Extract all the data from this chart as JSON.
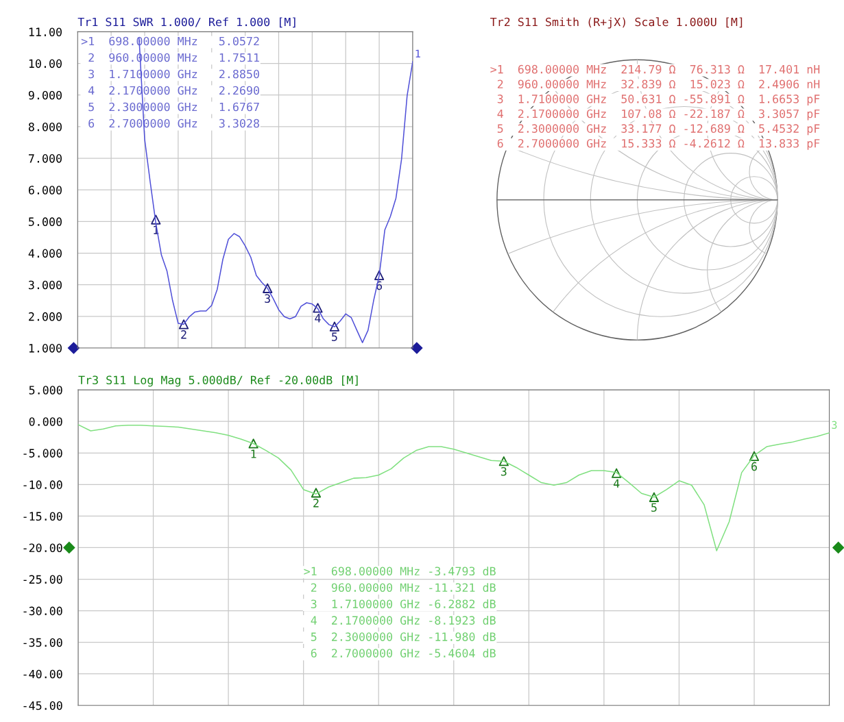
{
  "chart_data": [
    {
      "type": "line",
      "title": "Tr1 S11 SWR 1.000/ Ref 1.000 [M]",
      "categories": [
        null,
        null,
        null,
        null,
        null,
        null,
        null,
        null,
        null,
        null,
        null,
        null,
        null,
        null,
        null,
        null,
        null,
        null,
        null,
        null,
        null,
        null,
        null,
        null,
        null,
        null,
        null,
        null,
        null,
        null,
        null,
        null,
        null,
        null,
        null,
        null,
        null,
        null,
        null,
        null,
        null,
        null,
        null,
        null,
        null,
        null,
        null,
        null,
        null,
        null,
        null,
        null,
        null,
        null,
        null,
        null,
        null,
        null,
        null,
        null,
        null
      ],
      "series": [
        {
          "color": "#5050d8",
          "values": [
            null,
            null,
            null,
            null,
            null,
            null,
            null,
            null,
            null,
            null,
            null,
            10.8,
            7.6,
            6.24,
            4.95,
            3.94,
            3.43,
            2.5,
            1.78,
            1.75,
            1.99,
            2.14,
            2.17,
            2.17,
            2.35,
            2.86,
            3.8,
            4.44,
            4.62,
            4.52,
            4.23,
            3.87,
            3.29,
            3.07,
            2.89,
            2.57,
            2.21,
            1.99,
            1.92,
            1.99,
            2.32,
            2.43,
            2.39,
            2.25,
            1.92,
            1.74,
            1.67,
            1.85,
            2.08,
            1.96,
            1.56,
            1.17,
            1.56,
            2.5,
            3.29,
            4.73,
            5.16,
            5.74,
            6.97,
            8.98,
            10.06
          ]
        },
        {
          "type": "scatter",
          "name": "1",
          "color": "#1c1c78",
          "marker": "triangle",
          "values": [
            null,
            null,
            null,
            null,
            null,
            null,
            null,
            null,
            null,
            null,
            null,
            null,
            null,
            null,
            5.06,
            null,
            null,
            null,
            null,
            null,
            null,
            null,
            null,
            null,
            null,
            null,
            null,
            null,
            null,
            null,
            null,
            null,
            null,
            null,
            null,
            null,
            null,
            null,
            null,
            null,
            null,
            null,
            null,
            null,
            null,
            null,
            null,
            null,
            null,
            null,
            null,
            null,
            null,
            null,
            null,
            null,
            null,
            null,
            null,
            null,
            null
          ]
        },
        {
          "type": "scatter",
          "name": "2",
          "color": "#1c1c78",
          "marker": "triangle",
          "values": [
            null,
            null,
            null,
            null,
            null,
            null,
            null,
            null,
            null,
            null,
            null,
            null,
            null,
            null,
            null,
            null,
            null,
            null,
            null,
            1.75,
            null,
            null,
            null,
            null,
            null,
            null,
            null,
            null,
            null,
            null,
            null,
            null,
            null,
            null,
            null,
            null,
            null,
            null,
            null,
            null,
            null,
            null,
            null,
            null,
            null,
            null,
            null,
            null,
            null,
            null,
            null,
            null,
            null,
            null,
            null,
            null,
            null,
            null,
            null,
            null,
            null
          ]
        },
        {
          "type": "scatter",
          "name": "3",
          "color": "#1c1c78",
          "marker": "triangle",
          "values": [
            null,
            null,
            null,
            null,
            null,
            null,
            null,
            null,
            null,
            null,
            null,
            null,
            null,
            null,
            null,
            null,
            null,
            null,
            null,
            null,
            null,
            null,
            null,
            null,
            null,
            null,
            null,
            null,
            null,
            null,
            null,
            null,
            null,
            null,
            2.89,
            null,
            null,
            null,
            null,
            null,
            null,
            null,
            null,
            null,
            null,
            null,
            null,
            null,
            null,
            null,
            null,
            null,
            null,
            null,
            null,
            null,
            null,
            null,
            null,
            null,
            null
          ]
        },
        {
          "type": "scatter",
          "name": "4",
          "color": "#1c1c78",
          "marker": "triangle",
          "values": [
            null,
            null,
            null,
            null,
            null,
            null,
            null,
            null,
            null,
            null,
            null,
            null,
            null,
            null,
            null,
            null,
            null,
            null,
            null,
            null,
            null,
            null,
            null,
            null,
            null,
            null,
            null,
            null,
            null,
            null,
            null,
            null,
            null,
            null,
            null,
            null,
            null,
            null,
            null,
            null,
            null,
            null,
            null,
            2.27,
            null,
            null,
            null,
            null,
            null,
            null,
            null,
            null,
            null,
            null,
            null,
            null,
            null,
            null,
            null,
            null,
            null
          ]
        },
        {
          "type": "scatter",
          "name": "5",
          "color": "#1c1c78",
          "marker": "triangle",
          "values": [
            null,
            null,
            null,
            null,
            null,
            null,
            null,
            null,
            null,
            null,
            null,
            null,
            null,
            null,
            null,
            null,
            null,
            null,
            null,
            null,
            null,
            null,
            null,
            null,
            null,
            null,
            null,
            null,
            null,
            null,
            null,
            null,
            null,
            null,
            null,
            null,
            null,
            null,
            null,
            null,
            null,
            null,
            null,
            null,
            null,
            null,
            1.68,
            null,
            null,
            null,
            null,
            null,
            null,
            null,
            null,
            null,
            null,
            null,
            null,
            null,
            null
          ]
        },
        {
          "type": "scatter",
          "name": "6",
          "color": "#1c1c78",
          "marker": "triangle",
          "values": [
            null,
            null,
            null,
            null,
            null,
            null,
            null,
            null,
            null,
            null,
            null,
            null,
            null,
            null,
            null,
            null,
            null,
            null,
            null,
            null,
            null,
            null,
            null,
            null,
            null,
            null,
            null,
            null,
            null,
            null,
            null,
            null,
            null,
            null,
            null,
            null,
            null,
            null,
            null,
            null,
            null,
            null,
            null,
            null,
            null,
            null,
            null,
            null,
            null,
            null,
            null,
            null,
            null,
            null,
            3.3,
            null,
            null,
            null,
            null,
            null,
            null
          ]
        }
      ],
      "ylim": [
        1,
        11
      ],
      "yticks": [
        {
          "value": 1,
          "label": "1.000"
        },
        {
          "value": 2,
          "label": "2.000"
        },
        {
          "value": 3,
          "label": "3.000"
        },
        {
          "value": 4,
          "label": "4.000"
        },
        {
          "value": 5,
          "label": "5.000"
        },
        {
          "value": 6,
          "label": "6.000"
        },
        {
          "value": 7,
          "label": "7.000"
        },
        {
          "value": 8,
          "label": "8.000"
        },
        {
          "value": 9,
          "label": "9.000"
        },
        {
          "value": 10,
          "label": "10.00"
        },
        {
          "value": 11,
          "label": "11.00"
        }
      ],
      "tick_labels": "y",
      "grid": true,
      "legend": false,
      "annotations": [
        "1",
        ">1  698.00000 MHz   5.0572",
        " 2  960.00000 MHz   1.7511",
        " 3  1.7100000 GHz   2.8850",
        " 4  2.1700000 GHz   2.2690",
        " 5  2.3000000 GHz   1.6767",
        " 6  2.7000000 GHz   3.3028"
      ]
    },
    {
      "type": "other",
      "title": "Tr2 S11 Smith (R+jX) Scale 1.000U [M]",
      "annotations": [
        ">1  698.00000 MHz  214.79 Ω  76.313 Ω  17.401 nH",
        " 2  960.00000 MHz  32.839 Ω  15.023 Ω  2.4906 nH",
        " 3  1.7100000 GHz  50.631 Ω -55.891 Ω  1.6653 pF",
        " 4  2.1700000 GHz  107.08 Ω -22.187 Ω  3.3057 pF",
        " 5  2.3000000 GHz  33.177 Ω -12.689 Ω  5.4532 pF",
        " 6  2.7000000 GHz  15.333 Ω -4.2612 Ω  13.833 pF"
      ]
    },
    {
      "type": "line",
      "title": "Tr3 S11 Log Mag 5.000dB/ Ref -20.00dB [M]",
      "categories": [
        null,
        null,
        null,
        null,
        null,
        null,
        null,
        null,
        null,
        null,
        null,
        null,
        null,
        null,
        null,
        null,
        null,
        null,
        null,
        null,
        null,
        null,
        null,
        null,
        null,
        null,
        null,
        null,
        null,
        null,
        null,
        null,
        null,
        null,
        null,
        null,
        null,
        null,
        null,
        null,
        null,
        null,
        null,
        null,
        null,
        null,
        null,
        null,
        null,
        null,
        null,
        null,
        null,
        null,
        null,
        null,
        null,
        null,
        null,
        null,
        null
      ],
      "series": [
        {
          "color": "#80e080",
          "values": [
            -0.5,
            -1.5,
            -1.2,
            -0.7,
            -0.6,
            -0.6,
            -0.7,
            -0.8,
            -0.9,
            -1.2,
            -1.5,
            -1.8,
            -2.2,
            -2.8,
            -3.5,
            -4.6,
            -5.8,
            -7.7,
            -10.8,
            -11.5,
            -10.4,
            -9.7,
            -9,
            -8.9,
            -8.5,
            -7.5,
            -5.8,
            -4.6,
            -4,
            -4,
            -4.4,
            -5,
            -5.6,
            -6.2,
            -6.3,
            -7.3,
            -8.5,
            -9.7,
            -10.1,
            -9.7,
            -8.5,
            -7.8,
            -7.8,
            -8.1,
            -9.7,
            -11.4,
            -12,
            -10.8,
            -9.4,
            -10.1,
            -13.2,
            -20.5,
            -15.9,
            -8.1,
            -5.4,
            -4,
            -3.6,
            -3.3,
            -2.8,
            -2.4,
            -1.8
          ]
        },
        {
          "type": "scatter",
          "name": "1",
          "color": "#1b7a1b",
          "marker": "triangle",
          "values": [
            null,
            null,
            null,
            null,
            null,
            null,
            null,
            null,
            null,
            null,
            null,
            null,
            null,
            null,
            -3.5,
            null,
            null,
            null,
            null,
            null,
            null,
            null,
            null,
            null,
            null,
            null,
            null,
            null,
            null,
            null,
            null,
            null,
            null,
            null,
            null,
            null,
            null,
            null,
            null,
            null,
            null,
            null,
            null,
            null,
            null,
            null,
            null,
            null,
            null,
            null,
            null,
            null,
            null,
            null,
            null,
            null,
            null,
            null,
            null,
            null,
            null
          ]
        },
        {
          "type": "scatter",
          "name": "2",
          "color": "#1b7a1b",
          "marker": "triangle",
          "values": [
            null,
            null,
            null,
            null,
            null,
            null,
            null,
            null,
            null,
            null,
            null,
            null,
            null,
            null,
            null,
            null,
            null,
            null,
            null,
            -11.3,
            null,
            null,
            null,
            null,
            null,
            null,
            null,
            null,
            null,
            null,
            null,
            null,
            null,
            null,
            null,
            null,
            null,
            null,
            null,
            null,
            null,
            null,
            null,
            null,
            null,
            null,
            null,
            null,
            null,
            null,
            null,
            null,
            null,
            null,
            null,
            null,
            null,
            null,
            null,
            null,
            null
          ]
        },
        {
          "type": "scatter",
          "name": "3",
          "color": "#1b7a1b",
          "marker": "triangle",
          "values": [
            null,
            null,
            null,
            null,
            null,
            null,
            null,
            null,
            null,
            null,
            null,
            null,
            null,
            null,
            null,
            null,
            null,
            null,
            null,
            null,
            null,
            null,
            null,
            null,
            null,
            null,
            null,
            null,
            null,
            null,
            null,
            null,
            null,
            null,
            -6.3,
            null,
            null,
            null,
            null,
            null,
            null,
            null,
            null,
            null,
            null,
            null,
            null,
            null,
            null,
            null,
            null,
            null,
            null,
            null,
            null,
            null,
            null,
            null,
            null,
            null,
            null
          ]
        },
        {
          "type": "scatter",
          "name": "4",
          "color": "#1b7a1b",
          "marker": "triangle",
          "values": [
            null,
            null,
            null,
            null,
            null,
            null,
            null,
            null,
            null,
            null,
            null,
            null,
            null,
            null,
            null,
            null,
            null,
            null,
            null,
            null,
            null,
            null,
            null,
            null,
            null,
            null,
            null,
            null,
            null,
            null,
            null,
            null,
            null,
            null,
            null,
            null,
            null,
            null,
            null,
            null,
            null,
            null,
            null,
            -8.2,
            null,
            null,
            null,
            null,
            null,
            null,
            null,
            null,
            null,
            null,
            null,
            null,
            null,
            null,
            null,
            null,
            null
          ]
        },
        {
          "type": "scatter",
          "name": "5",
          "color": "#1b7a1b",
          "marker": "triangle",
          "values": [
            null,
            null,
            null,
            null,
            null,
            null,
            null,
            null,
            null,
            null,
            null,
            null,
            null,
            null,
            null,
            null,
            null,
            null,
            null,
            null,
            null,
            null,
            null,
            null,
            null,
            null,
            null,
            null,
            null,
            null,
            null,
            null,
            null,
            null,
            null,
            null,
            null,
            null,
            null,
            null,
            null,
            null,
            null,
            null,
            null,
            null,
            -12,
            null,
            null,
            null,
            null,
            null,
            null,
            null,
            null,
            null,
            null,
            null,
            null,
            null,
            null
          ]
        },
        {
          "type": "scatter",
          "name": "6",
          "color": "#1b7a1b",
          "marker": "triangle",
          "values": [
            null,
            null,
            null,
            null,
            null,
            null,
            null,
            null,
            null,
            null,
            null,
            null,
            null,
            null,
            null,
            null,
            null,
            null,
            null,
            null,
            null,
            null,
            null,
            null,
            null,
            null,
            null,
            null,
            null,
            null,
            null,
            null,
            null,
            null,
            null,
            null,
            null,
            null,
            null,
            null,
            null,
            null,
            null,
            null,
            null,
            null,
            null,
            null,
            null,
            null,
            null,
            null,
            null,
            null,
            -5.5,
            null,
            null,
            null,
            null,
            null,
            null
          ]
        }
      ],
      "ylim": [
        -45,
        5
      ],
      "yticks": [
        {
          "value": 5,
          "label": "5.000"
        },
        {
          "value": 0,
          "label": "0.000"
        },
        {
          "value": -5,
          "label": "-5.000"
        },
        {
          "value": -10,
          "label": "-10.00"
        },
        {
          "value": -15,
          "label": "-15.00"
        },
        {
          "value": -20,
          "label": "-20.00"
        },
        {
          "value": -25,
          "label": "-25.00"
        },
        {
          "value": -30,
          "label": "-30.00"
        },
        {
          "value": -35,
          "label": "-35.00"
        },
        {
          "value": -40,
          "label": "-40.00"
        },
        {
          "value": -45,
          "label": "-45.00"
        }
      ],
      "tick_labels": "y",
      "grid": true,
      "legend": false,
      "annotations": [
        "3",
        ">1  698.00000 MHz -3.4793 dB",
        " 2  960.00000 MHz -11.321 dB",
        " 3  1.7100000 GHz -6.2882 dB",
        " 4  2.1700000 GHz -8.1923 dB",
        " 5  2.3000000 GHz -11.980 dB",
        " 6  2.7000000 GHz -5.4604 dB"
      ]
    }
  ]
}
